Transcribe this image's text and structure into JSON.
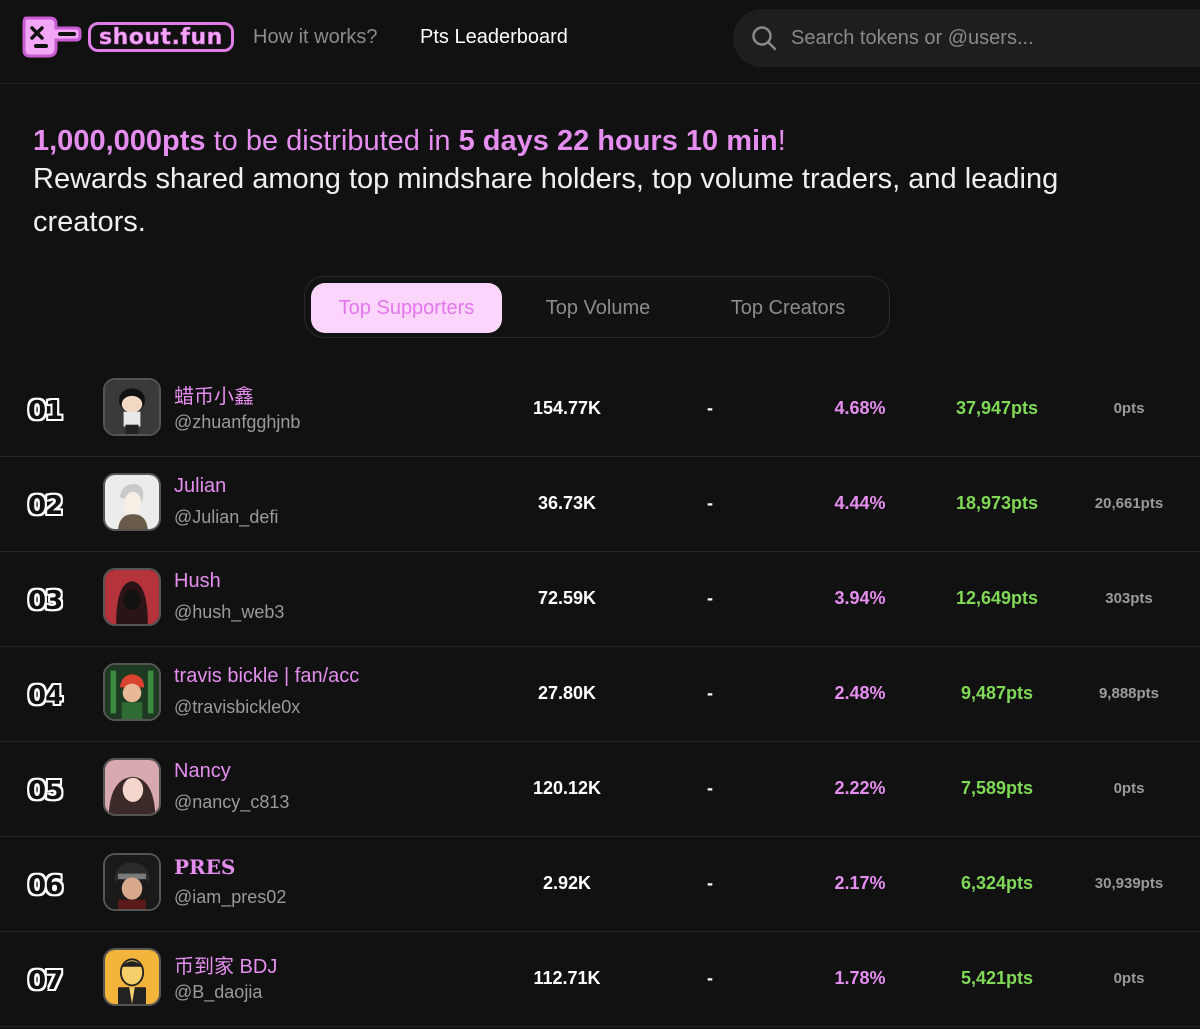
{
  "header": {
    "logo_text": "shout.fun",
    "nav": [
      "How it works?",
      "Pts Leaderboard"
    ],
    "search_placeholder": "Search tokens or @users..."
  },
  "banner": {
    "amount": "1,000,000pts",
    "mid_text": " to be distributed in ",
    "countdown": "5 days 22 hours 10 min",
    "exclaim": "!",
    "line2": "Rewards shared among top mindshare holders, top volume traders, and leading creators."
  },
  "tabs": [
    "Top Supporters",
    "Top Volume",
    "Top Creators"
  ],
  "rows": [
    {
      "rank": "01",
      "name": "蜡币小鑫",
      "handle": "@zhuanfgghjnb",
      "volume": "154.77K",
      "dash": "-",
      "pct": "4.68%",
      "pts": "37,947pts",
      "extra": "0pts"
    },
    {
      "rank": "02",
      "name": "Julian",
      "handle": "@Julian_defi",
      "volume": "36.73K",
      "dash": "-",
      "pct": "4.44%",
      "pts": "18,973pts",
      "extra": "20,661pts"
    },
    {
      "rank": "03",
      "name": "Hush",
      "handle": "@hush_web3",
      "volume": "72.59K",
      "dash": "-",
      "pct": "3.94%",
      "pts": "12,649pts",
      "extra": "303pts"
    },
    {
      "rank": "04",
      "name": "travis bickle | fan/acc",
      "handle": "@travisbickle0x",
      "volume": "27.80K",
      "dash": "-",
      "pct": "2.48%",
      "pts": "9,487pts",
      "extra": "9,888pts"
    },
    {
      "rank": "05",
      "name": "Nancy",
      "handle": "@nancy_c813",
      "volume": "120.12K",
      "dash": "-",
      "pct": "2.22%",
      "pts": "7,589pts",
      "extra": "0pts"
    },
    {
      "rank": "06",
      "name": "PRES",
      "handle": "@iam_pres02",
      "volume": "2.92K",
      "dash": "-",
      "pct": "2.17%",
      "pts": "6,324pts",
      "extra": "30,939pts"
    },
    {
      "rank": "07",
      "name": "币到家 BDJ",
      "handle": "@B_daojia",
      "volume": "112.71K",
      "dash": "-",
      "pct": "1.78%",
      "pts": "5,421pts",
      "extra": "0pts"
    }
  ],
  "colors": {
    "accent": "#e58ef0",
    "points_green": "#7fd957",
    "tab_active_bg": "#fbd5fb",
    "background": "#111111"
  }
}
